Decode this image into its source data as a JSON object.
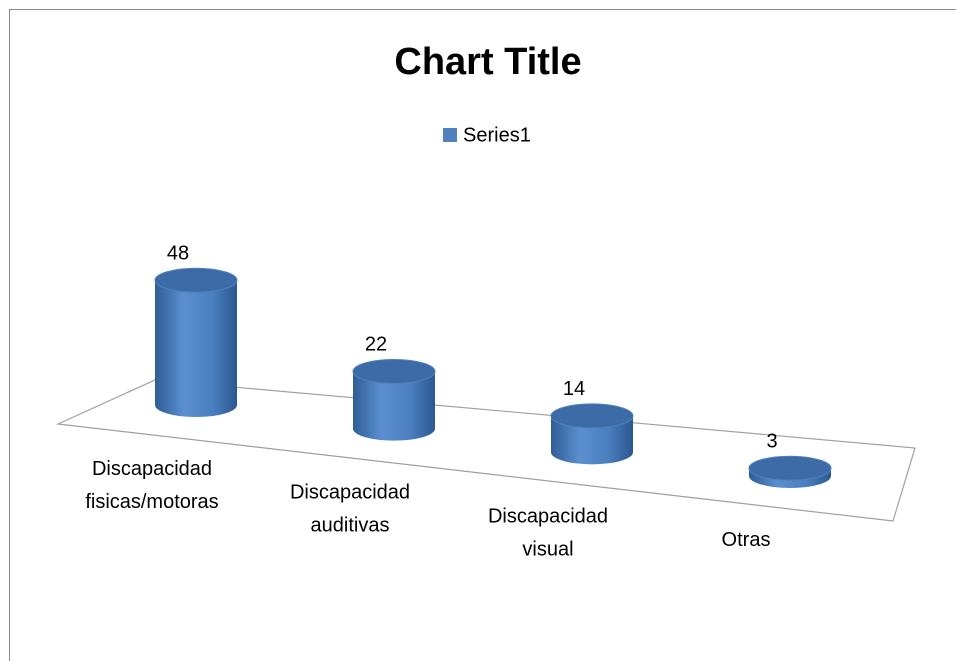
{
  "chart_data": {
    "type": "bar3d",
    "title": "Chart Title",
    "categories": [
      "Discapacidad fisicas/motoras",
      "Discapacidad auditivas",
      "Discapacidad visual",
      "Otras"
    ],
    "series": [
      {
        "name": "Series1",
        "color": "#4f81bd",
        "values": [
          48,
          22,
          14,
          3
        ]
      }
    ],
    "legend": "top"
  }
}
